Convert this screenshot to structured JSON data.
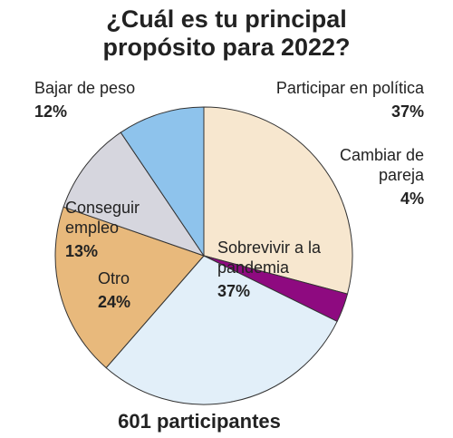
{
  "chart_data": {
    "type": "pie",
    "title": "¿Cuál es tu principal propósito para 2022?",
    "note": "601 participantes",
    "categories": [
      "Participar en política",
      "Cambiar de pareja",
      "Sobrevivir a la pandemia",
      "Otro",
      "Conseguir empleo",
      "Bajar de peso"
    ],
    "values": [
      37,
      4,
      37,
      24,
      13,
      12
    ],
    "value_labels": [
      "37%",
      "4%",
      "37%",
      "24%",
      "13%",
      "12%"
    ],
    "colors": [
      "#f7e7cf",
      "#8e0a80",
      "#e2eff9",
      "#e8b97c",
      "#d6d6de",
      "#8ec3ec"
    ]
  }
}
